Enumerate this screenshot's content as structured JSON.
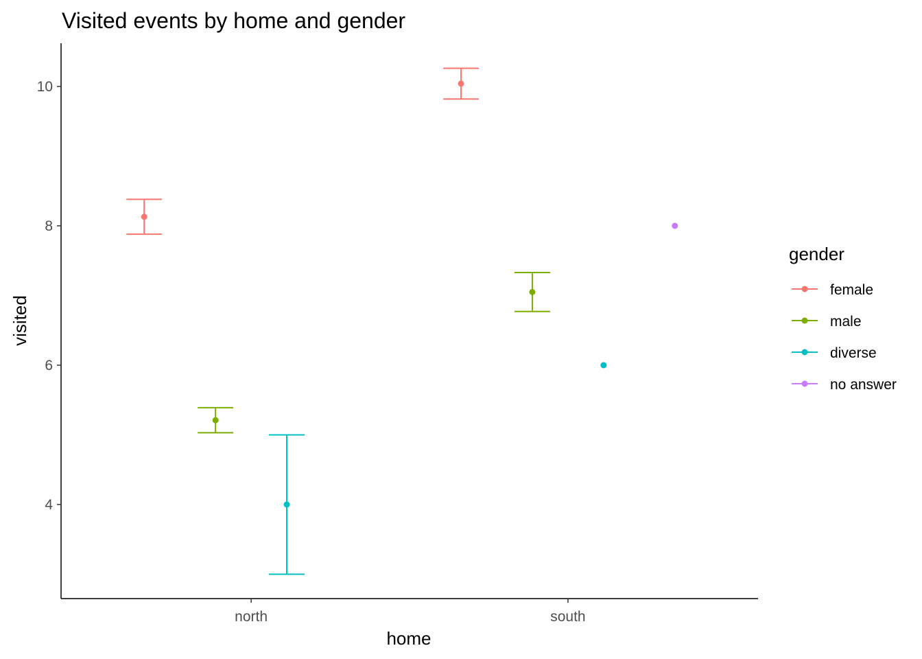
{
  "chart_data": {
    "type": "scatter",
    "title": "Visited events by home and gender",
    "xlabel": "home",
    "ylabel": "visited",
    "categories": [
      "north",
      "south"
    ],
    "ylim": [
      2.65,
      10.62
    ],
    "yticks": [
      4,
      6,
      8,
      10
    ],
    "grid": false,
    "error_bars": true,
    "legend": {
      "title": "gender",
      "position": "right"
    },
    "series": [
      {
        "name": "female",
        "color": "#F8766D",
        "points": [
          {
            "x": "north",
            "y": 8.13,
            "ymin": 7.88,
            "ymax": 8.38
          },
          {
            "x": "south",
            "y": 10.04,
            "ymin": 9.82,
            "ymax": 10.26
          }
        ]
      },
      {
        "name": "male",
        "color": "#7CAE00",
        "points": [
          {
            "x": "north",
            "y": 5.21,
            "ymin": 5.03,
            "ymax": 5.39
          },
          {
            "x": "south",
            "y": 7.05,
            "ymin": 6.77,
            "ymax": 7.33
          }
        ]
      },
      {
        "name": "diverse",
        "color": "#00BFC4",
        "points": [
          {
            "x": "north",
            "y": 4.0,
            "ymin": 3.0,
            "ymax": 5.0
          },
          {
            "x": "south",
            "y": 6.0,
            "ymin": 6.0,
            "ymax": 6.0
          }
        ]
      },
      {
        "name": "no answer",
        "color": "#C77CFF",
        "points": [
          {
            "x": "south",
            "y": 8.0,
            "ymin": 8.0,
            "ymax": 8.0
          }
        ]
      }
    ]
  }
}
